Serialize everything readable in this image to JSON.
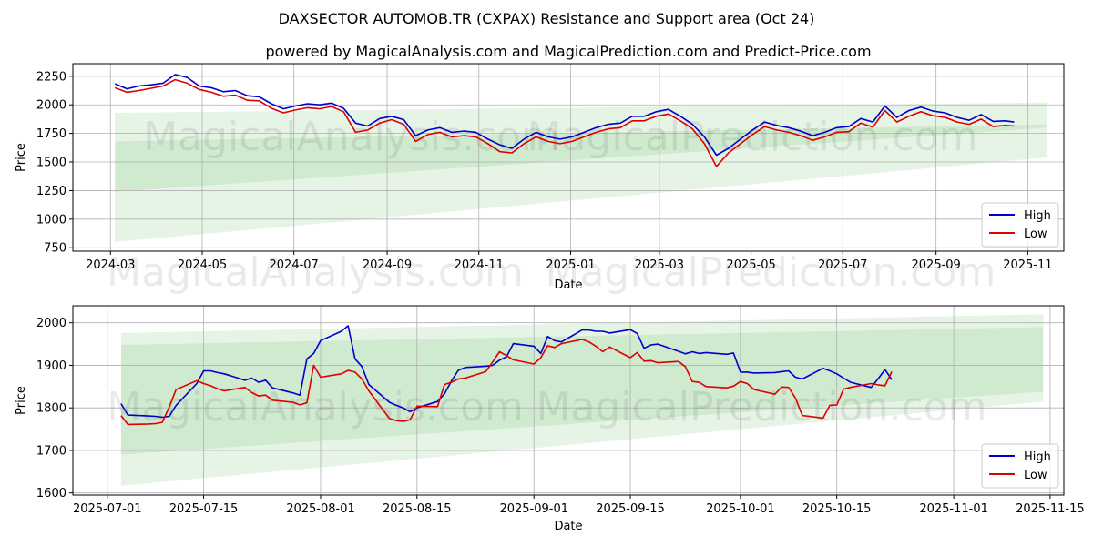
{
  "figure": {
    "title": "DAXSECTOR AUTOMOB.TR (CXPAX) Resistance and Support area (Oct 24)",
    "subtitle": "powered by MagicalAnalysis.com and MagicalPrediction.com and Predict-Price.com",
    "watermark_1": "MagicalAnalysis.com",
    "watermark_2": "MagicalPrediction.com"
  },
  "colors": {
    "high": "#0000cc",
    "low": "#dd0000",
    "band": "#4caf50"
  },
  "chart_data": [
    {
      "type": "line",
      "xlabel": "Date",
      "ylabel": "Price",
      "x_range": [
        "2024-02-05",
        "2025-11-25"
      ],
      "ylim": [
        720,
        2360
      ],
      "grid": true,
      "legend": "lower right",
      "x_ticks": [
        "2024-03",
        "2024-05",
        "2024-07",
        "2024-09",
        "2024-11",
        "2025-01",
        "2025-03",
        "2025-05",
        "2025-07",
        "2025-09",
        "2025-11"
      ],
      "y_ticks": [
        750,
        1000,
        1250,
        1500,
        1750,
        2000,
        2250
      ],
      "bands": [
        {
          "x": [
            "2024-03-04",
            "2025-11-14"
          ],
          "upper": [
            1930,
            2020
          ],
          "lower": [
            800,
            1540
          ]
        },
        {
          "x": [
            "2024-03-04",
            "2025-11-14"
          ],
          "upper": [
            1680,
            1830
          ],
          "lower": [
            1240,
            1800
          ]
        }
      ],
      "series": [
        {
          "name": "High",
          "x": [
            "2024-03-04",
            "2024-03-12",
            "2024-03-20",
            "2024-03-28",
            "2024-04-05",
            "2024-04-13",
            "2024-04-21",
            "2024-04-29",
            "2024-05-07",
            "2024-05-15",
            "2024-05-23",
            "2024-05-31",
            "2024-06-08",
            "2024-06-16",
            "2024-06-24",
            "2024-07-02",
            "2024-07-10",
            "2024-07-18",
            "2024-07-26",
            "2024-08-03",
            "2024-08-11",
            "2024-08-19",
            "2024-08-27",
            "2024-09-04",
            "2024-09-12",
            "2024-09-20",
            "2024-09-28",
            "2024-10-06",
            "2024-10-14",
            "2024-10-22",
            "2024-10-30",
            "2024-11-07",
            "2024-11-15",
            "2024-11-23",
            "2024-12-01",
            "2024-12-09",
            "2024-12-17",
            "2024-12-25",
            "2025-01-02",
            "2025-01-10",
            "2025-01-18",
            "2025-01-26",
            "2025-02-03",
            "2025-02-11",
            "2025-02-19",
            "2025-02-27",
            "2025-03-07",
            "2025-03-15",
            "2025-03-23",
            "2025-03-31",
            "2025-04-08",
            "2025-04-16",
            "2025-04-24",
            "2025-05-02",
            "2025-05-10",
            "2025-05-18",
            "2025-05-26",
            "2025-06-03",
            "2025-06-11",
            "2025-06-19",
            "2025-06-27",
            "2025-07-05",
            "2025-07-13",
            "2025-07-21",
            "2025-07-29",
            "2025-08-06",
            "2025-08-14",
            "2025-08-22",
            "2025-08-30",
            "2025-09-07",
            "2025-09-15",
            "2025-09-23",
            "2025-10-01",
            "2025-10-09",
            "2025-10-17",
            "2025-10-23"
          ],
          "values": [
            2185,
            2140,
            2165,
            2175,
            2190,
            2265,
            2240,
            2165,
            2150,
            2115,
            2125,
            2080,
            2070,
            2010,
            1965,
            1990,
            2010,
            2000,
            2015,
            1970,
            1840,
            1815,
            1880,
            1900,
            1870,
            1730,
            1780,
            1800,
            1760,
            1770,
            1760,
            1700,
            1650,
            1620,
            1700,
            1760,
            1720,
            1700,
            1720,
            1760,
            1800,
            1830,
            1840,
            1900,
            1900,
            1940,
            1960,
            1900,
            1830,
            1720,
            1560,
            1620,
            1700,
            1780,
            1850,
            1820,
            1800,
            1770,
            1730,
            1760,
            1800,
            1810,
            1880,
            1850,
            1990,
            1890,
            1950,
            1980,
            1945,
            1930,
            1890,
            1865,
            1915,
            1855,
            1860,
            1850
          ]
        },
        {
          "name": "Low",
          "x": [
            "2024-03-04",
            "2024-03-12",
            "2024-03-20",
            "2024-03-28",
            "2024-04-05",
            "2024-04-13",
            "2024-04-21",
            "2024-04-29",
            "2024-05-07",
            "2024-05-15",
            "2024-05-23",
            "2024-05-31",
            "2024-06-08",
            "2024-06-16",
            "2024-06-24",
            "2024-07-02",
            "2024-07-10",
            "2024-07-18",
            "2024-07-26",
            "2024-08-03",
            "2024-08-11",
            "2024-08-19",
            "2024-08-27",
            "2024-09-04",
            "2024-09-12",
            "2024-09-20",
            "2024-09-28",
            "2024-10-06",
            "2024-10-14",
            "2024-10-22",
            "2024-10-30",
            "2024-11-07",
            "2024-11-15",
            "2024-11-23",
            "2024-12-01",
            "2024-12-09",
            "2024-12-17",
            "2024-12-25",
            "2025-01-02",
            "2025-01-10",
            "2025-01-18",
            "2025-01-26",
            "2025-02-03",
            "2025-02-11",
            "2025-02-19",
            "2025-02-27",
            "2025-03-07",
            "2025-03-15",
            "2025-03-23",
            "2025-03-31",
            "2025-04-08",
            "2025-04-16",
            "2025-04-24",
            "2025-05-02",
            "2025-05-10",
            "2025-05-18",
            "2025-05-26",
            "2025-06-03",
            "2025-06-11",
            "2025-06-19",
            "2025-06-27",
            "2025-07-05",
            "2025-07-13",
            "2025-07-21",
            "2025-07-29",
            "2025-08-06",
            "2025-08-14",
            "2025-08-22",
            "2025-08-30",
            "2025-09-07",
            "2025-09-15",
            "2025-09-23",
            "2025-10-01",
            "2025-10-09",
            "2025-10-17",
            "2025-10-23"
          ],
          "values": [
            2150,
            2110,
            2125,
            2145,
            2165,
            2220,
            2190,
            2135,
            2110,
            2075,
            2085,
            2040,
            2035,
            1970,
            1930,
            1955,
            1975,
            1965,
            1985,
            1940,
            1760,
            1780,
            1840,
            1870,
            1830,
            1680,
            1740,
            1760,
            1720,
            1730,
            1720,
            1660,
            1590,
            1580,
            1660,
            1720,
            1680,
            1660,
            1680,
            1720,
            1760,
            1790,
            1800,
            1860,
            1860,
            1900,
            1920,
            1860,
            1790,
            1660,
            1460,
            1580,
            1660,
            1740,
            1810,
            1780,
            1760,
            1730,
            1690,
            1720,
            1760,
            1765,
            1840,
            1805,
            1950,
            1850,
            1900,
            1940,
            1905,
            1890,
            1850,
            1830,
            1875,
            1810,
            1820,
            1815
          ]
        }
      ]
    },
    {
      "type": "line",
      "xlabel": "Date",
      "ylabel": "Price",
      "x_range": [
        "2025-06-26",
        "2025-11-17"
      ],
      "ylim": [
        1595,
        2040
      ],
      "grid": true,
      "legend": "lower right",
      "x_ticks": [
        "2025-07-01",
        "2025-07-15",
        "2025-08-01",
        "2025-08-15",
        "2025-09-01",
        "2025-09-15",
        "2025-10-01",
        "2025-10-15",
        "2025-11-01",
        "2025-11-15"
      ],
      "y_ticks": [
        1600,
        1700,
        1800,
        1900,
        2000
      ],
      "bands": [
        {
          "x": [
            "2025-07-03",
            "2025-11-14"
          ],
          "upper": [
            1976,
            2020
          ],
          "lower": [
            1617,
            1815
          ]
        },
        {
          "x": [
            "2025-07-03",
            "2025-11-14"
          ],
          "upper": [
            1948,
            1990
          ],
          "lower": [
            1690,
            1838
          ]
        }
      ],
      "series": [
        {
          "name": "High",
          "x": [
            "2025-07-03",
            "2025-07-04",
            "2025-07-07",
            "2025-07-08",
            "2025-07-09",
            "2025-07-10",
            "2025-07-11",
            "2025-07-14",
            "2025-07-15",
            "2025-07-16",
            "2025-07-17",
            "2025-07-18",
            "2025-07-21",
            "2025-07-22",
            "2025-07-23",
            "2025-07-24",
            "2025-07-25",
            "2025-07-28",
            "2025-07-29",
            "2025-07-30",
            "2025-07-31",
            "2025-08-01",
            "2025-08-04",
            "2025-08-05",
            "2025-08-06",
            "2025-08-07",
            "2025-08-08",
            "2025-08-11",
            "2025-08-12",
            "2025-08-13",
            "2025-08-14",
            "2025-08-15",
            "2025-08-18",
            "2025-08-19",
            "2025-08-20",
            "2025-08-21",
            "2025-08-22",
            "2025-08-25",
            "2025-08-26",
            "2025-08-27",
            "2025-08-28",
            "2025-08-29",
            "2025-09-01",
            "2025-09-02",
            "2025-09-03",
            "2025-09-04",
            "2025-09-05",
            "2025-09-08",
            "2025-09-09",
            "2025-09-10",
            "2025-09-11",
            "2025-09-12",
            "2025-09-15",
            "2025-09-16",
            "2025-09-17",
            "2025-09-18",
            "2025-09-19",
            "2025-09-22",
            "2025-09-23",
            "2025-09-24",
            "2025-09-25",
            "2025-09-26",
            "2025-09-29",
            "2025-09-30",
            "2025-10-01",
            "2025-10-02",
            "2025-10-03",
            "2025-10-06",
            "2025-10-07",
            "2025-10-08",
            "2025-10-09",
            "2025-10-10",
            "2025-10-13",
            "2025-10-14",
            "2025-10-15",
            "2025-10-16",
            "2025-10-17",
            "2025-10-20",
            "2025-10-21",
            "2025-10-22",
            "2025-10-23"
          ],
          "values": [
            1810,
            1783,
            1781,
            1780,
            1778,
            1780,
            1806,
            1857,
            1887,
            1887,
            1883,
            1880,
            1865,
            1870,
            1860,
            1865,
            1847,
            1835,
            1830,
            1915,
            1928,
            1958,
            1980,
            1993,
            1915,
            1897,
            1855,
            1813,
            1806,
            1800,
            1791,
            1800,
            1815,
            1833,
            1863,
            1888,
            1895,
            1898,
            1900,
            1912,
            1920,
            1951,
            1945,
            1928,
            1968,
            1958,
            1955,
            1983,
            1983,
            1980,
            1980,
            1976,
            1984,
            1975,
            1940,
            1948,
            1950,
            1933,
            1927,
            1932,
            1928,
            1930,
            1926,
            1929,
            1884,
            1884,
            1882,
            1883,
            1885,
            1887,
            1872,
            1868,
            1893,
            1887,
            1880,
            1870,
            1860,
            1848,
            1868,
            1890,
            1866
          ]
        },
        {
          "name": "Low",
          "x": [
            "2025-07-03",
            "2025-07-04",
            "2025-07-07",
            "2025-07-08",
            "2025-07-09",
            "2025-07-10",
            "2025-07-11",
            "2025-07-14",
            "2025-07-15",
            "2025-07-16",
            "2025-07-17",
            "2025-07-18",
            "2025-07-21",
            "2025-07-22",
            "2025-07-23",
            "2025-07-24",
            "2025-07-25",
            "2025-07-28",
            "2025-07-29",
            "2025-07-30",
            "2025-07-31",
            "2025-08-01",
            "2025-08-04",
            "2025-08-05",
            "2025-08-06",
            "2025-08-07",
            "2025-08-08",
            "2025-08-11",
            "2025-08-12",
            "2025-08-13",
            "2025-08-14",
            "2025-08-15",
            "2025-08-18",
            "2025-08-19",
            "2025-08-20",
            "2025-08-21",
            "2025-08-22",
            "2025-08-25",
            "2025-08-26",
            "2025-08-27",
            "2025-08-28",
            "2025-08-29",
            "2025-09-01",
            "2025-09-02",
            "2025-09-03",
            "2025-09-04",
            "2025-09-05",
            "2025-09-08",
            "2025-09-09",
            "2025-09-10",
            "2025-09-11",
            "2025-09-12",
            "2025-09-15",
            "2025-09-16",
            "2025-09-17",
            "2025-09-18",
            "2025-09-19",
            "2025-09-22",
            "2025-09-23",
            "2025-09-24",
            "2025-09-25",
            "2025-09-26",
            "2025-09-29",
            "2025-09-30",
            "2025-10-01",
            "2025-10-02",
            "2025-10-03",
            "2025-10-06",
            "2025-10-07",
            "2025-10-08",
            "2025-10-09",
            "2025-10-10",
            "2025-10-13",
            "2025-10-14",
            "2025-10-15",
            "2025-10-16",
            "2025-10-17",
            "2025-10-20",
            "2025-10-21",
            "2025-10-22",
            "2025-10-23"
          ],
          "values": [
            1782,
            1761,
            1762,
            1763,
            1766,
            1802,
            1843,
            1864,
            1857,
            1852,
            1845,
            1840,
            1848,
            1836,
            1828,
            1830,
            1818,
            1813,
            1807,
            1812,
            1900,
            1872,
            1880,
            1888,
            1884,
            1868,
            1840,
            1775,
            1770,
            1768,
            1772,
            1804,
            1803,
            1855,
            1860,
            1868,
            1870,
            1885,
            1908,
            1932,
            1923,
            1913,
            1903,
            1918,
            1946,
            1942,
            1951,
            1961,
            1955,
            1945,
            1932,
            1943,
            1918,
            1930,
            1910,
            1911,
            1906,
            1909,
            1897,
            1862,
            1860,
            1850,
            1847,
            1851,
            1862,
            1857,
            1843,
            1832,
            1849,
            1848,
            1823,
            1782,
            1776,
            1806,
            1807,
            1844,
            1848,
            1857,
            1854,
            1852,
            1885
          ]
        }
      ]
    }
  ]
}
